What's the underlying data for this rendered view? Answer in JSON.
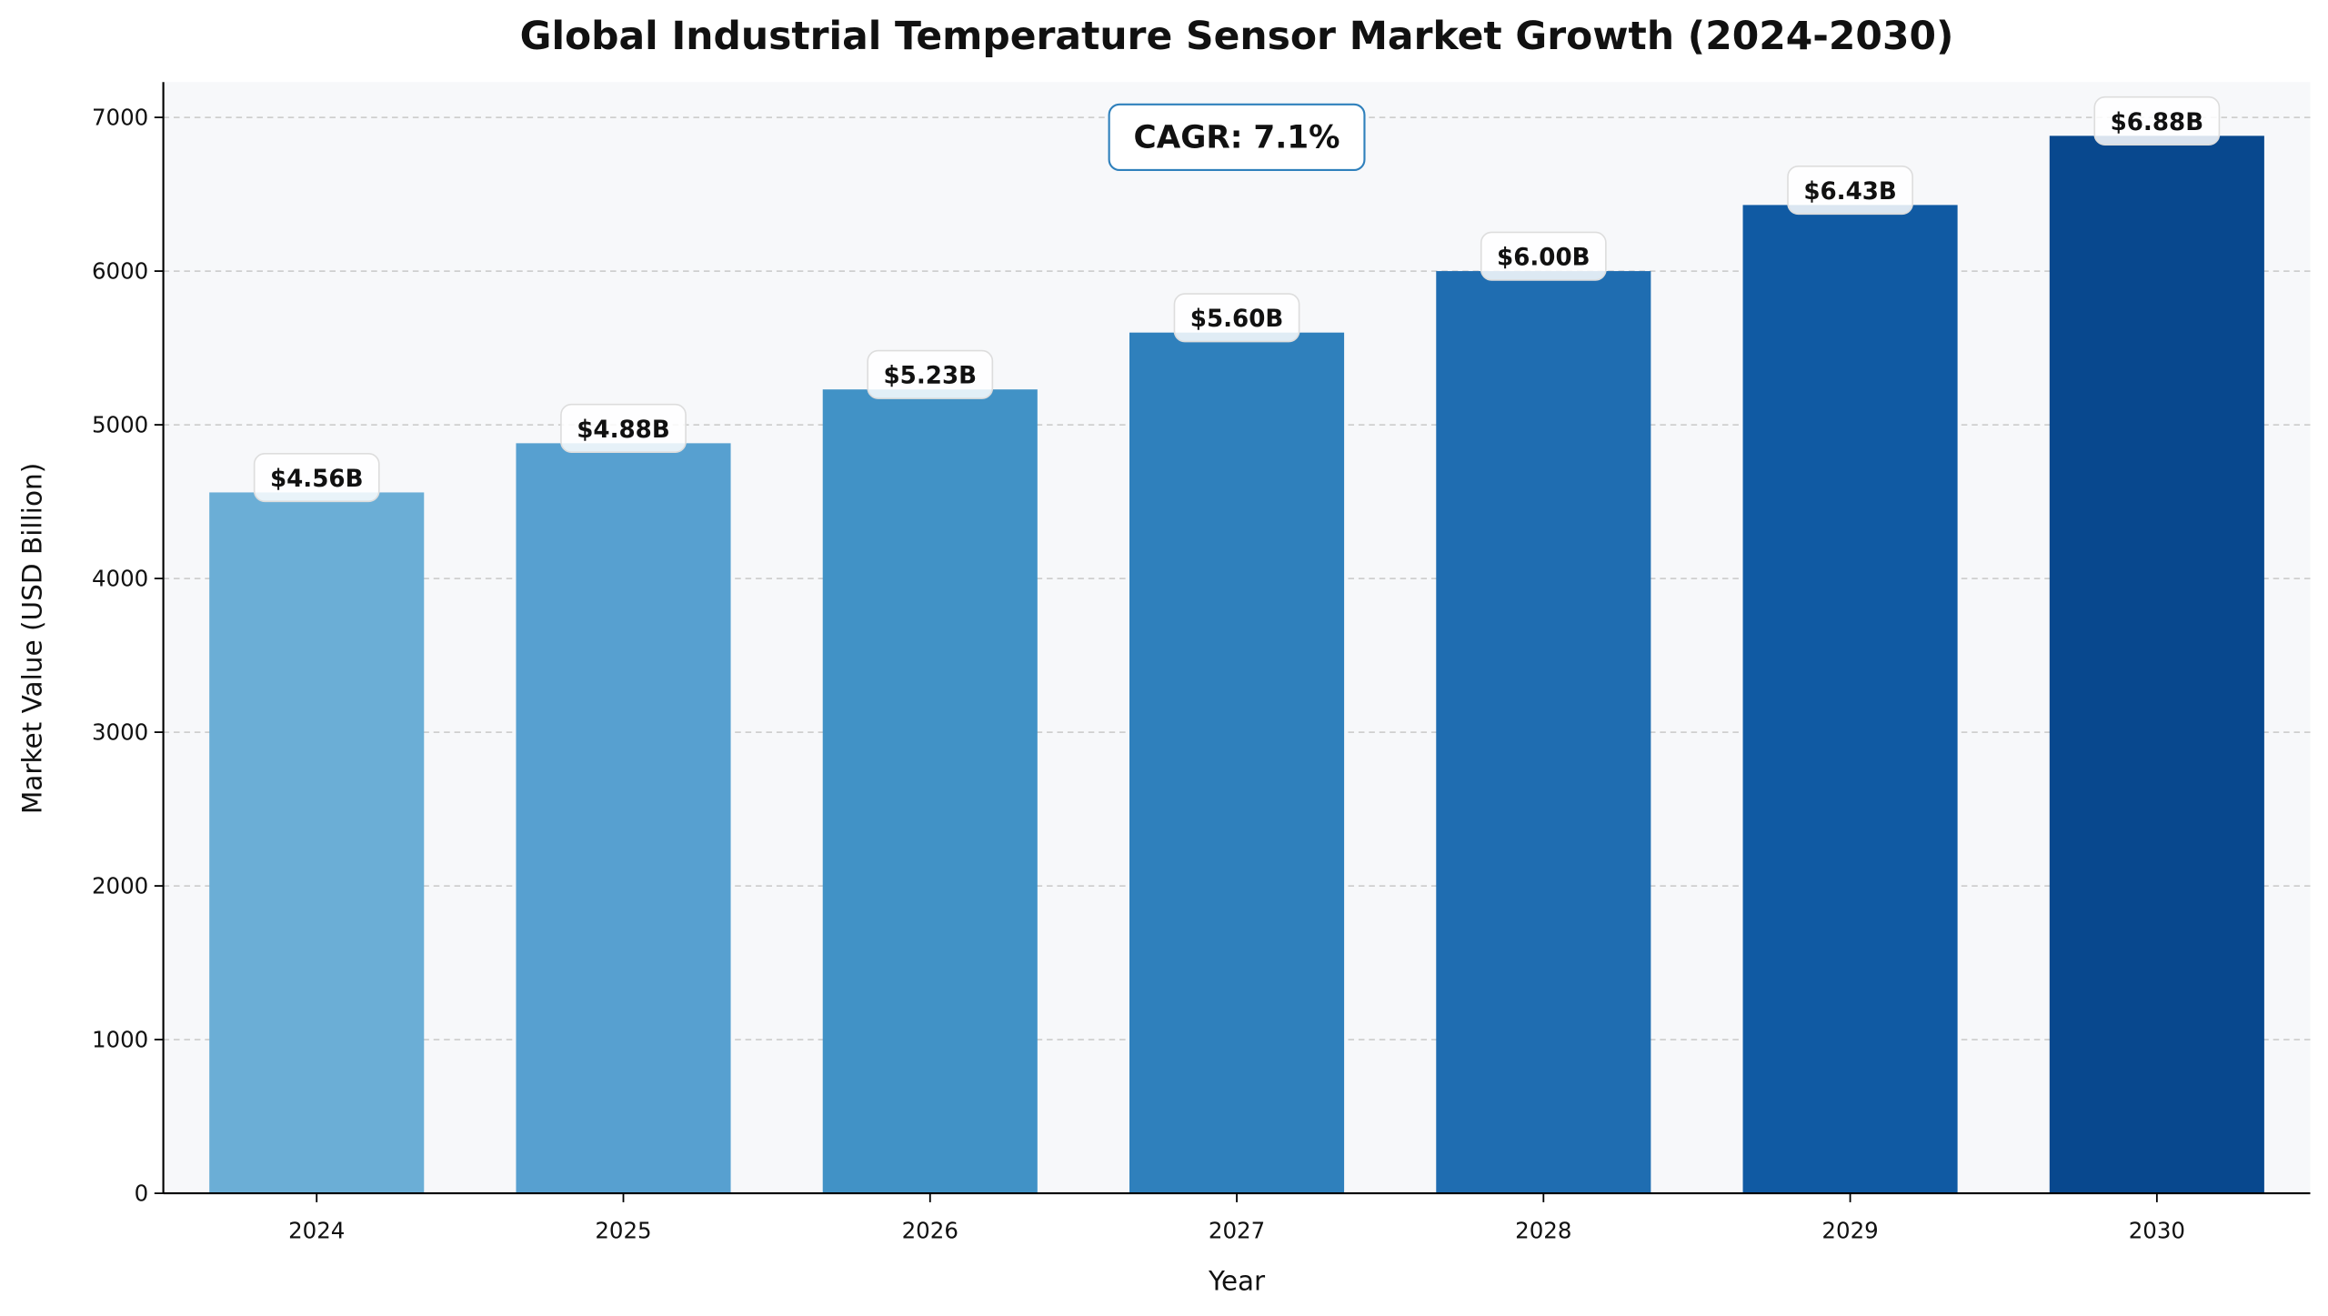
{
  "chart_data": {
    "type": "bar",
    "title": "Global Industrial Temperature Sensor Market Growth (2024-2030)",
    "xlabel": "Year",
    "ylabel": "Market Value (USD Billion)",
    "categories": [
      "2024",
      "2025",
      "2026",
      "2027",
      "2028",
      "2029",
      "2030"
    ],
    "values": [
      4560,
      4880,
      5230,
      5600,
      6000,
      6430,
      6880
    ],
    "value_labels": [
      "$4.56B",
      "$4.88B",
      "$5.23B",
      "$5.60B",
      "$6.00B",
      "$6.43B",
      "$6.88B"
    ],
    "bar_colors": [
      "#6baed6",
      "#57a0d0",
      "#4192c6",
      "#2f80bc",
      "#1f6db1",
      "#105aa3",
      "#08488e"
    ],
    "ylim": [
      0,
      7230
    ],
    "yticks": [
      0,
      1000,
      2000,
      3000,
      4000,
      5000,
      6000,
      7000
    ],
    "grid": true,
    "annotation": "CAGR: 7.1%",
    "annotation_border_color": "#2f80bc",
    "background_color": "#f7f8fa"
  }
}
